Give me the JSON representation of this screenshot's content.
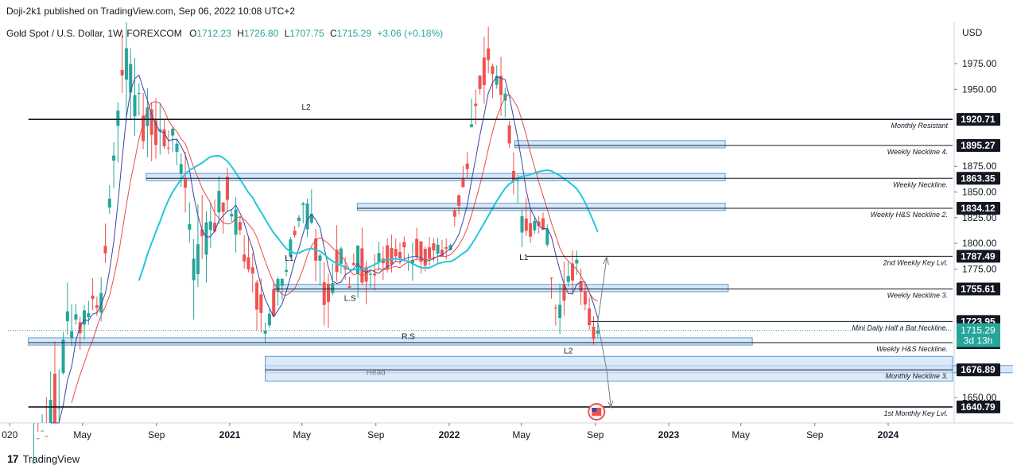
{
  "header": {
    "published": "Doji-2k1 published on TradingView.com, Sep 06, 2022 10:08 UTC+2"
  },
  "legend": {
    "symbol": "Gold Spot / U.S. Dollar, 1W, FOREXCOM",
    "open_label": "O",
    "open": "1712.23",
    "high_label": "H",
    "high": "1726.80",
    "low_label": "L",
    "low": "1707.75",
    "close_label": "C",
    "close": "1715.29",
    "change": "+3.06 (+0.18%)"
  },
  "footer": {
    "brand_mark": "17",
    "brand": "TradingView"
  },
  "colors": {
    "up": "#26a69a",
    "down": "#ef5350",
    "zone_fill": "#cfe2f7",
    "zone_border": "#5b9bd5",
    "ma_fast": "#3a46a8",
    "ma_mid": "#e74c4c",
    "ma_slow": "#26c6da",
    "price_tag": "#26a69a",
    "level_tag": "#131722"
  },
  "chart_data": {
    "type": "candlestick",
    "currency_label": "USD",
    "y_ticks": [
      "1975.00",
      "1950.00",
      "1875.00",
      "1850.00",
      "1825.00",
      "1800.00",
      "1775.00",
      "1650.00"
    ],
    "x_ticks": [
      "020",
      "May",
      "Sep",
      "2021",
      "May",
      "Sep",
      "2022",
      "May",
      "Sep",
      "2023",
      "May",
      "Sep",
      "2024"
    ],
    "x_tick_bold": [
      false,
      false,
      false,
      true,
      false,
      false,
      true,
      false,
      false,
      true,
      false,
      false,
      true
    ],
    "current_price": "1715.29",
    "countdown": "3d 13h",
    "levels": [
      {
        "value": 1920.71,
        "label": "1920.71",
        "text": "Monthly Resistant",
        "heavy": true,
        "x0": "2020-02-01"
      },
      {
        "value": 1895.27,
        "label": "1895.27",
        "text": "Weekly Neckline 4.",
        "heavy": false,
        "x0": "2022-04-20"
      },
      {
        "value": 1863.35,
        "label": "1863.35",
        "text": "Weekly Neckline.",
        "heavy": false,
        "x0": "2020-08-15"
      },
      {
        "value": 1834.12,
        "label": "1834.12",
        "text": "Weekly H&S Neckline 2.",
        "heavy": false,
        "x0": "2021-08-01"
      },
      {
        "value": 1787.49,
        "label": "1787.49",
        "text": "2nd Weekly Key Lvl.",
        "heavy": false,
        "x0": "2022-05-10"
      },
      {
        "value": 1755.61,
        "label": "1755.61",
        "text": "Weekly Neckline 3.",
        "heavy": false,
        "x0": "2021-03-15"
      },
      {
        "value": 1723.95,
        "label": "1723.95",
        "text": "Mini Daily Half a Bat Neckline.",
        "heavy": false,
        "x0": "2022-08-25"
      },
      {
        "value": 1703.39,
        "label": "1703.39",
        "text": "Weekly H&S Neckline.",
        "heavy": false,
        "x0": "2020-02-01"
      },
      {
        "value": 1676.89,
        "label": "1676.89",
        "text": "Monthly Neckline 3.",
        "heavy": false,
        "x0": "2021-03-01"
      },
      {
        "value": 1640.79,
        "label": "1640.79",
        "text": "1st Monthly Key Lvl.",
        "heavy": true,
        "x0": "2020-02-01"
      }
    ],
    "zones": [
      {
        "top": 1897,
        "bottom": 1893,
        "x0": "2022-04-20",
        "x1": "2023-04-05"
      },
      {
        "top": 1865,
        "bottom": 1861,
        "x0": "2020-08-15",
        "x1": "2023-04-05"
      },
      {
        "top": 1836,
        "bottom": 1832,
        "x0": "2021-08-01",
        "x1": "2023-04-05"
      },
      {
        "top": 1757,
        "bottom": 1753,
        "x0": "2021-03-15",
        "x1": "2023-04-10"
      },
      {
        "top": 1705,
        "bottom": 1701,
        "x0": "2020-02-01",
        "x1": "2023-05-20"
      },
      {
        "top": 1678,
        "bottom": 1675,
        "x0": "2021-03-01",
        "x1": "2024-11-30"
      }
    ],
    "annotations": [
      {
        "text": "L2",
        "x": "2021-05-08",
        "y": 1930
      },
      {
        "text": "L1",
        "x": "2021-04-10",
        "y": 1783
      },
      {
        "text": "L.S",
        "x": "2021-07-20",
        "y": 1744
      },
      {
        "text": "R.S",
        "x": "2021-10-25",
        "y": 1707
      },
      {
        "text": "Head",
        "x": "2021-09-01",
        "y": 1672
      },
      {
        "text": "L1",
        "x": "2022-05-05",
        "y": 1784
      },
      {
        "text": "L2",
        "x": "2022-07-18",
        "y": 1693
      }
    ],
    "candles_sampled": [
      {
        "date": "2020-02-10",
        "o": 1600,
        "h": 1610,
        "l": 1560,
        "c": 1590
      },
      {
        "date": "2020-03-09",
        "o": 1590,
        "h": 1700,
        "l": 1470,
        "c": 1615
      },
      {
        "date": "2020-04-06",
        "o": 1615,
        "h": 1750,
        "l": 1600,
        "c": 1720
      },
      {
        "date": "2020-05-04",
        "o": 1710,
        "h": 1765,
        "l": 1690,
        "c": 1730
      },
      {
        "date": "2020-06-01",
        "o": 1730,
        "h": 1765,
        "l": 1670,
        "c": 1745
      },
      {
        "date": "2020-07-06",
        "o": 1770,
        "h": 1980,
        "l": 1760,
        "c": 1960
      },
      {
        "date": "2020-08-03",
        "o": 1975,
        "h": 2075,
        "l": 1900,
        "c": 1935
      },
      {
        "date": "2020-08-31",
        "o": 1960,
        "h": 2000,
        "l": 1860,
        "c": 1900
      },
      {
        "date": "2020-10-05",
        "o": 1890,
        "h": 1935,
        "l": 1870,
        "c": 1900
      },
      {
        "date": "2020-11-02",
        "o": 1880,
        "h": 1965,
        "l": 1765,
        "c": 1780
      },
      {
        "date": "2020-12-28",
        "o": 1880,
        "h": 1960,
        "l": 1865,
        "c": 1850
      },
      {
        "date": "2021-02-01",
        "o": 1850,
        "h": 1875,
        "l": 1760,
        "c": 1785
      },
      {
        "date": "2021-03-01",
        "o": 1730,
        "h": 1760,
        "l": 1676,
        "c": 1720
      },
      {
        "date": "2021-04-05",
        "o": 1730,
        "h": 1790,
        "l": 1720,
        "c": 1775
      },
      {
        "date": "2021-05-03",
        "o": 1815,
        "h": 1855,
        "l": 1770,
        "c": 1840
      },
      {
        "date": "2021-06-07",
        "o": 1880,
        "h": 1915,
        "l": 1760,
        "c": 1765
      },
      {
        "date": "2021-08-09",
        "o": 1760,
        "h": 1800,
        "l": 1680,
        "c": 1780
      },
      {
        "date": "2021-10-04",
        "o": 1760,
        "h": 1800,
        "l": 1745,
        "c": 1790
      },
      {
        "date": "2021-11-15",
        "o": 1860,
        "h": 1875,
        "l": 1780,
        "c": 1790
      },
      {
        "date": "2022-01-03",
        "o": 1830,
        "h": 1850,
        "l": 1790,
        "c": 1800
      },
      {
        "date": "2022-02-07",
        "o": 1800,
        "h": 1910,
        "l": 1790,
        "c": 1900
      },
      {
        "date": "2022-03-07",
        "o": 1970,
        "h": 2070,
        "l": 1920,
        "c": 1990
      },
      {
        "date": "2022-04-04",
        "o": 1930,
        "h": 1990,
        "l": 1900,
        "c": 1945
      },
      {
        "date": "2022-05-02",
        "o": 1880,
        "h": 1910,
        "l": 1800,
        "c": 1810
      },
      {
        "date": "2022-06-06",
        "o": 1850,
        "h": 1880,
        "l": 1805,
        "c": 1825
      },
      {
        "date": "2022-07-04",
        "o": 1810,
        "h": 1815,
        "l": 1700,
        "c": 1730
      },
      {
        "date": "2022-08-01",
        "o": 1745,
        "h": 1805,
        "l": 1720,
        "c": 1780
      },
      {
        "date": "2022-08-29",
        "o": 1730,
        "h": 1740,
        "l": 1690,
        "c": 1712
      },
      {
        "date": "2022-09-05",
        "o": 1712.23,
        "h": 1726.8,
        "l": 1707.75,
        "c": 1715.29
      }
    ]
  }
}
